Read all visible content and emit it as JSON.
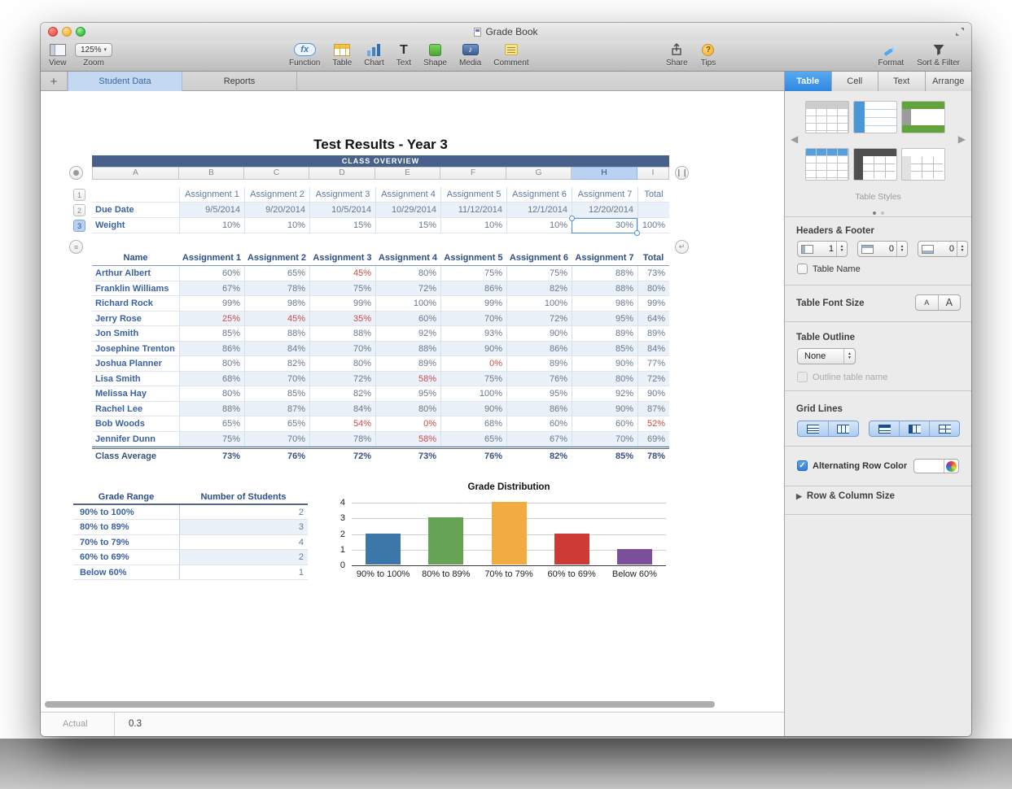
{
  "window": {
    "title": "Grade Book"
  },
  "colors": {
    "accent_blue": "#3c96e9",
    "table_header_blue": "#47618c",
    "selection_blue": "#4a90d9",
    "negative_red": "#cf4a46",
    "label_blue": "#3a62a3",
    "alt_row_tint": "#eaf1f9"
  },
  "toolbar": {
    "view": {
      "label": "View"
    },
    "zoom": {
      "label": "Zoom",
      "value": "125%"
    },
    "center_items": [
      {
        "name": "function",
        "label": "Function"
      },
      {
        "name": "table",
        "label": "Table"
      },
      {
        "name": "chart",
        "label": "Chart"
      },
      {
        "name": "text",
        "label": "Text"
      },
      {
        "name": "shape",
        "label": "Shape"
      },
      {
        "name": "media",
        "label": "Media"
      },
      {
        "name": "comment",
        "label": "Comment"
      }
    ],
    "share": {
      "label": "Share"
    },
    "tips": {
      "label": "Tips"
    },
    "format": {
      "label": "Format"
    },
    "sort_filter": {
      "label": "Sort & Filter"
    }
  },
  "sheet_tabs": {
    "add_label": "+",
    "tabs": [
      {
        "label": "Student Data",
        "active": true
      },
      {
        "label": "Reports",
        "active": false
      }
    ]
  },
  "document": {
    "title": "Test Results - Year 3",
    "overview_table": {
      "title": "CLASS OVERVIEW",
      "column_letters": [
        "A",
        "B",
        "C",
        "D",
        "E",
        "F",
        "G",
        "H",
        "I"
      ],
      "selected_column": "H",
      "row_numbers": [
        "1",
        "2",
        "3"
      ],
      "selected_row": "3",
      "rows": [
        {
          "type": "labels",
          "tinted": false,
          "cells": [
            "",
            "Assignment 1",
            "Assignment 2",
            "Assignment 3",
            "Assignment 4",
            "Assignment 5",
            "Assignment 6",
            "Assignment 7",
            "Total"
          ]
        },
        {
          "type": "data",
          "tinted": true,
          "cells": [
            "Due Date",
            "9/5/2014",
            "9/20/2014",
            "10/5/2014",
            "10/29/2014",
            "11/12/2014",
            "12/1/2014",
            "12/20/2014",
            ""
          ]
        },
        {
          "type": "data",
          "tinted": false,
          "selected_cell": 7,
          "cells": [
            "Weight",
            "10%",
            "10%",
            "15%",
            "15%",
            "10%",
            "10%",
            "30%",
            "100%"
          ]
        }
      ]
    },
    "students_table": {
      "headers": [
        "Name",
        "Assignment 1",
        "Assignment 2",
        "Assignment 3",
        "Assignment 4",
        "Assignment 5",
        "Assignment 6",
        "Assignment 7",
        "Total"
      ],
      "rows": [
        {
          "name": "Arthur Albert",
          "values": [
            "60%",
            "65%",
            "45%",
            "80%",
            "75%",
            "75%",
            "88%",
            "73%"
          ],
          "red": [
            2
          ]
        },
        {
          "name": "Franklin Williams",
          "values": [
            "67%",
            "78%",
            "75%",
            "72%",
            "86%",
            "82%",
            "88%",
            "80%"
          ],
          "red": []
        },
        {
          "name": "Richard Rock",
          "values": [
            "99%",
            "98%",
            "99%",
            "100%",
            "99%",
            "100%",
            "98%",
            "99%"
          ],
          "red": []
        },
        {
          "name": "Jerry Rose",
          "values": [
            "25%",
            "45%",
            "35%",
            "60%",
            "70%",
            "72%",
            "95%",
            "64%"
          ],
          "red": [
            0,
            1,
            2
          ]
        },
        {
          "name": "Jon Smith",
          "values": [
            "85%",
            "88%",
            "88%",
            "92%",
            "93%",
            "90%",
            "89%",
            "89%"
          ],
          "red": []
        },
        {
          "name": "Josephine Trenton",
          "values": [
            "86%",
            "84%",
            "70%",
            "88%",
            "90%",
            "86%",
            "85%",
            "84%"
          ],
          "red": []
        },
        {
          "name": "Joshua Planner",
          "values": [
            "80%",
            "82%",
            "80%",
            "89%",
            "0%",
            "89%",
            "90%",
            "77%"
          ],
          "red": [
            4
          ]
        },
        {
          "name": "Lisa Smith",
          "values": [
            "68%",
            "70%",
            "72%",
            "58%",
            "75%",
            "76%",
            "80%",
            "72%"
          ],
          "red": [
            3
          ]
        },
        {
          "name": "Melissa Hay",
          "values": [
            "80%",
            "85%",
            "82%",
            "95%",
            "100%",
            "95%",
            "92%",
            "90%"
          ],
          "red": []
        },
        {
          "name": "Rachel Lee",
          "values": [
            "88%",
            "87%",
            "84%",
            "80%",
            "90%",
            "86%",
            "90%",
            "87%"
          ],
          "red": []
        },
        {
          "name": "Bob Woods",
          "values": [
            "65%",
            "65%",
            "54%",
            "0%",
            "68%",
            "60%",
            "60%",
            "52%"
          ],
          "red": [
            2,
            3,
            7
          ]
        },
        {
          "name": "Jennifer Dunn",
          "values": [
            "75%",
            "70%",
            "78%",
            "58%",
            "65%",
            "67%",
            "70%",
            "69%"
          ],
          "red": [
            3
          ]
        }
      ],
      "footer": {
        "name": "Class Average",
        "values": [
          "73%",
          "76%",
          "72%",
          "73%",
          "76%",
          "82%",
          "85%",
          "78%"
        ]
      }
    },
    "grade_range_table": {
      "headers": [
        "Grade Range",
        "Number of Students"
      ],
      "rows": [
        {
          "range": "90% to 100%",
          "count": "2"
        },
        {
          "range": "80% to 89%",
          "count": "3"
        },
        {
          "range": "70% to 79%",
          "count": "4"
        },
        {
          "range": "60% to 69%",
          "count": "2"
        },
        {
          "range": "Below 60%",
          "count": "1"
        }
      ]
    }
  },
  "chart_data": {
    "type": "bar",
    "title": "Grade Distribution",
    "categories": [
      "90% to 100%",
      "80% to 89%",
      "70% to 79%",
      "60% to 69%",
      "Below 60%"
    ],
    "values": [
      2,
      3,
      4,
      2,
      1
    ],
    "bar_colors": [
      "#3d76a8",
      "#66a355",
      "#f0ac41",
      "#cc3b35",
      "#7c4f9b"
    ],
    "xlabel": "",
    "ylabel": "",
    "ylim": [
      0,
      4
    ],
    "yticks": [
      0,
      1,
      2,
      3,
      4
    ],
    "grid": true,
    "legend": false
  },
  "sidebar": {
    "tabs": [
      {
        "label": "Table",
        "active": true
      },
      {
        "label": "Cell",
        "active": false
      },
      {
        "label": "Text",
        "active": false
      },
      {
        "label": "Arrange",
        "active": false
      }
    ],
    "table_styles": {
      "caption": "Table Styles",
      "page_dots": 2
    },
    "headers_footer": {
      "label": "Headers & Footer",
      "steppers": [
        {
          "value": "1"
        },
        {
          "value": "0"
        },
        {
          "value": "0"
        }
      ],
      "table_name": {
        "label": "Table Name",
        "checked": false
      }
    },
    "table_font_size": {
      "label": "Table Font Size",
      "small": "A",
      "large": "A"
    },
    "table_outline": {
      "label": "Table Outline",
      "dropdown_value": "None",
      "outline_name": {
        "label": "Outline table name",
        "checked": false,
        "disabled": true
      }
    },
    "grid_lines": {
      "label": "Grid Lines"
    },
    "alternating_row_color": {
      "label": "Alternating Row Color",
      "checked": true
    },
    "row_column_size": {
      "label": "Row & Column Size"
    }
  },
  "statusbar": {
    "mode": "Actual",
    "value": "0.3"
  }
}
